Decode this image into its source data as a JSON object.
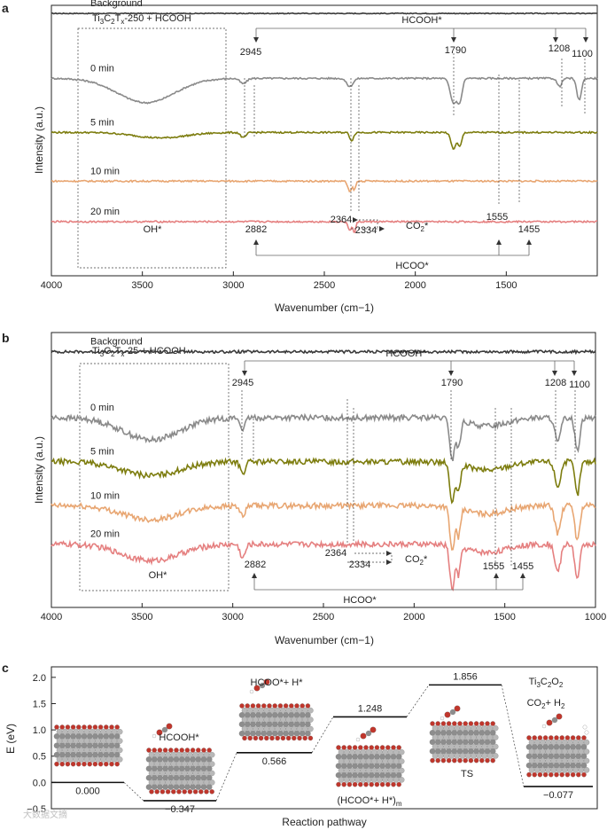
{
  "chart_data": [
    {
      "panel": "a",
      "type": "line",
      "title": "Ti3C2Tx-250 + HCOOH",
      "title_parts": [
        "Ti",
        "3",
        "C",
        "2",
        "T",
        "x",
        "-250 + HCOOH"
      ],
      "xlabel": "Wavenumber (cm−1)",
      "ylabel": "Intensity (a.u.)",
      "xlim": [
        4000,
        1000
      ],
      "xticks": [
        4000,
        3500,
        3000,
        2500,
        2000,
        1500
      ],
      "xtick_labels": [
        "4000",
        "3500",
        "3000",
        "2500",
        "2000",
        "1500"
      ],
      "series": [
        {
          "name": "Background",
          "color": "#3a3a3a",
          "offset": 0.97,
          "peaks": []
        },
        {
          "name": "0 min",
          "color": "#8a8a8a",
          "offset": 0.73,
          "peaks": [
            [
              3480,
              220,
              -0.09
            ],
            [
              2945,
              25,
              -0.02
            ],
            [
              2360,
              25,
              -0.03
            ],
            [
              1790,
              25,
              -0.09
            ],
            [
              1755,
              18,
              -0.08
            ],
            [
              1208,
              18,
              -0.03
            ],
            [
              1100,
              18,
              -0.08
            ]
          ]
        },
        {
          "name": "5 min",
          "color": "#7d7d0f",
          "offset": 0.53,
          "peaks": [
            [
              3400,
              200,
              -0.02
            ],
            [
              2945,
              20,
              -0.02
            ],
            [
              2350,
              15,
              -0.03
            ],
            [
              1790,
              20,
              -0.06
            ],
            [
              1755,
              15,
              -0.05
            ]
          ]
        },
        {
          "name": "10 min",
          "color": "#e8a672",
          "offset": 0.35,
          "peaks": [
            [
              2360,
              15,
              -0.04
            ],
            [
              2334,
              10,
              -0.03
            ]
          ]
        },
        {
          "name": "20 min",
          "color": "#e58080",
          "offset": 0.2,
          "peaks": [
            [
              2360,
              15,
              -0.03
            ],
            [
              2334,
              10,
              -0.04
            ]
          ]
        }
      ],
      "annotations": {
        "hcooh_label": "HCOOH*",
        "hcooh_marks": [
          "2945",
          "1790",
          "1208",
          "1100"
        ],
        "co2_label": "CO2*",
        "co2_marks": [
          "2364",
          "2334"
        ],
        "hcoo_label": "HCOO*",
        "hcoo_marks": [
          "2882",
          "1555",
          "1455"
        ],
        "oh_label": "OH*"
      }
    },
    {
      "panel": "b",
      "type": "line",
      "title": "Ti3C2Tx-25 + HCOOH",
      "title_parts": [
        "Ti",
        "3",
        "C",
        "2",
        "T",
        "x",
        "-25 + HCOOH"
      ],
      "xlabel": "Wavenumber (cm−1)",
      "ylabel": "Intensity (a.u.)",
      "xlim": [
        4000,
        1000
      ],
      "xticks": [
        4000,
        3500,
        3000,
        2500,
        2000,
        1500,
        1000
      ],
      "xtick_labels": [
        "4000",
        "3500",
        "3000",
        "2500",
        "2000",
        "1500",
        "1000"
      ],
      "series": [
        {
          "name": "Background",
          "color": "#3a3a3a",
          "offset": 0.93,
          "peaks": []
        },
        {
          "name": "0 min",
          "color": "#8a8a8a",
          "offset": 0.69,
          "peaks": [
            [
              3450,
              220,
              -0.08
            ],
            [
              2945,
              20,
              -0.04
            ],
            [
              1790,
              18,
              -0.15
            ],
            [
              1755,
              15,
              -0.1
            ],
            [
              1600,
              150,
              -0.03
            ],
            [
              1208,
              22,
              -0.09
            ],
            [
              1100,
              18,
              -0.12
            ]
          ]
        },
        {
          "name": "5 min",
          "color": "#7d7d0f",
          "offset": 0.53,
          "peaks": [
            [
              3450,
              220,
              -0.05
            ],
            [
              2945,
              20,
              -0.04
            ],
            [
              1790,
              18,
              -0.15
            ],
            [
              1755,
              15,
              -0.1
            ],
            [
              1600,
              150,
              -0.03
            ],
            [
              1208,
              22,
              -0.09
            ],
            [
              1100,
              18,
              -0.12
            ]
          ]
        },
        {
          "name": "10 min",
          "color": "#e8a672",
          "offset": 0.37,
          "peaks": [
            [
              3450,
              220,
              -0.05
            ],
            [
              2945,
              20,
              -0.04
            ],
            [
              1790,
              18,
              -0.16
            ],
            [
              1755,
              15,
              -0.1
            ],
            [
              1600,
              150,
              -0.03
            ],
            [
              1208,
              22,
              -0.1
            ],
            [
              1100,
              18,
              -0.13
            ]
          ]
        },
        {
          "name": "20 min",
          "color": "#e58080",
          "offset": 0.23,
          "peaks": [
            [
              3450,
              220,
              -0.06
            ],
            [
              2945,
              20,
              -0.05
            ],
            [
              1790,
              18,
              -0.16
            ],
            [
              1755,
              15,
              -0.1
            ],
            [
              1600,
              150,
              -0.03
            ],
            [
              1208,
              22,
              -0.1
            ],
            [
              1100,
              18,
              -0.13
            ]
          ]
        }
      ],
      "annotations": {
        "hcooh_label": "HCOOH*",
        "hcooh_marks": [
          "2945",
          "1790",
          "1208",
          "1100"
        ],
        "co2_label": "CO2*",
        "co2_marks": [
          "2364",
          "2334"
        ],
        "hcoo_label": "HCOO*",
        "hcoo_marks": [
          "2882",
          "1555",
          "1455"
        ],
        "oh_label": "OH*"
      }
    },
    {
      "panel": "c",
      "type": "energy-profile",
      "xlabel": "Reaction pathway",
      "ylabel": "E (eV)",
      "ylim": [
        -0.5,
        2.2
      ],
      "yticks": [
        -0.5,
        0.0,
        0.5,
        1.0,
        1.5,
        2.0
      ],
      "ytick_labels": [
        "−0.5",
        "0.0",
        "0.5",
        "1.0",
        "1.5",
        "2.0"
      ],
      "states": [
        {
          "energy": 0.0,
          "value_label": "0.000",
          "name": ""
        },
        {
          "energy": -0.347,
          "value_label": "−0.347",
          "name": "HCOOH*"
        },
        {
          "energy": 0.566,
          "value_label": "0.566",
          "name": "HCOO*+ H*"
        },
        {
          "energy": 1.248,
          "value_label": "1.248",
          "name": "(HCOO*+ H*)m"
        },
        {
          "energy": 1.856,
          "value_label": "1.856",
          "name": "TS"
        },
        {
          "energy": -0.077,
          "value_label": "−0.077",
          "name": "CO2+ H2"
        }
      ],
      "product_title": "Ti3C2O2"
    }
  ],
  "panel_letters": [
    "a",
    "b",
    "c"
  ],
  "watermark": "大数据文摘"
}
